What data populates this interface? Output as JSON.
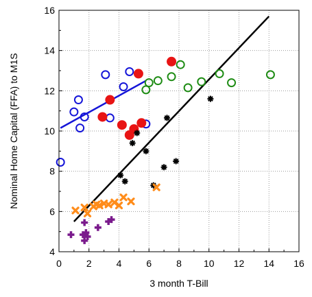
{
  "chart_data": {
    "type": "scatter",
    "title": "",
    "xlabel": "3 month T-Bill",
    "ylabel": "Nominal Home Capital (FFA) to M1S",
    "xlim": [
      0,
      16
    ],
    "ylim": [
      4,
      16
    ],
    "xticks": [
      "0",
      "2",
      "4",
      "6",
      "8",
      "10",
      "12",
      "14",
      "16"
    ],
    "yticks": [
      "4",
      "6",
      "8",
      "10",
      "12",
      "14",
      "16"
    ],
    "grid": true,
    "legend": "none",
    "series": [
      {
        "marker": "open-circle",
        "color": "#1515d8",
        "x": [
          0.1,
          1.0,
          1.3,
          1.4,
          1.7,
          3.1,
          3.4,
          4.3,
          4.7,
          5.8
        ],
        "y": [
          8.45,
          10.95,
          11.55,
          10.15,
          10.7,
          12.8,
          10.65,
          12.2,
          12.95,
          10.35
        ]
      },
      {
        "marker": "filled-circle",
        "color": "#e81414",
        "x": [
          2.9,
          3.4,
          4.2,
          4.7,
          5.0,
          5.3,
          5.5,
          7.5
        ],
        "y": [
          10.7,
          11.55,
          10.3,
          9.8,
          10.1,
          12.85,
          10.4,
          13.45
        ]
      },
      {
        "marker": "open-circle",
        "color": "#1e8c14",
        "x": [
          5.8,
          6.0,
          6.6,
          7.5,
          8.1,
          8.6,
          9.5,
          10.7,
          11.5,
          14.1
        ],
        "y": [
          12.05,
          12.4,
          12.5,
          12.7,
          13.3,
          12.15,
          12.45,
          12.85,
          12.4,
          12.8
        ]
      },
      {
        "marker": "asterisk",
        "color": "#000000",
        "x": [
          4.1,
          4.4,
          4.9,
          5.2,
          5.8,
          6.3,
          7.0,
          7.2,
          7.8,
          10.1
        ],
        "y": [
          7.8,
          7.5,
          9.4,
          9.9,
          9.0,
          7.3,
          8.2,
          10.65,
          8.5,
          11.6
        ]
      },
      {
        "marker": "x",
        "color": "#ff8c1a",
        "x": [
          1.1,
          1.7,
          1.9,
          2.3,
          2.5,
          2.7,
          3.0,
          3.3,
          3.7,
          4.0,
          4.3,
          4.8,
          6.5
        ],
        "y": [
          6.05,
          6.2,
          5.9,
          6.25,
          6.35,
          6.3,
          6.4,
          6.35,
          6.45,
          6.3,
          6.7,
          6.5,
          7.2
        ]
      },
      {
        "marker": "plus",
        "color": "#7a1a8c",
        "x": [
          0.8,
          1.6,
          1.7,
          1.8,
          1.7,
          1.9,
          2.6,
          3.3,
          3.5
        ],
        "y": [
          4.85,
          4.85,
          5.45,
          4.95,
          4.55,
          4.75,
          5.2,
          5.5,
          5.6
        ]
      }
    ],
    "fit_lines": [
      {
        "color": "#1515d8",
        "x": [
          0.1,
          5.8
        ],
        "y": [
          10.15,
          12.5
        ]
      },
      {
        "color": "#000000",
        "x": [
          1.0,
          14.0
        ],
        "y": [
          5.5,
          15.7
        ]
      }
    ]
  }
}
